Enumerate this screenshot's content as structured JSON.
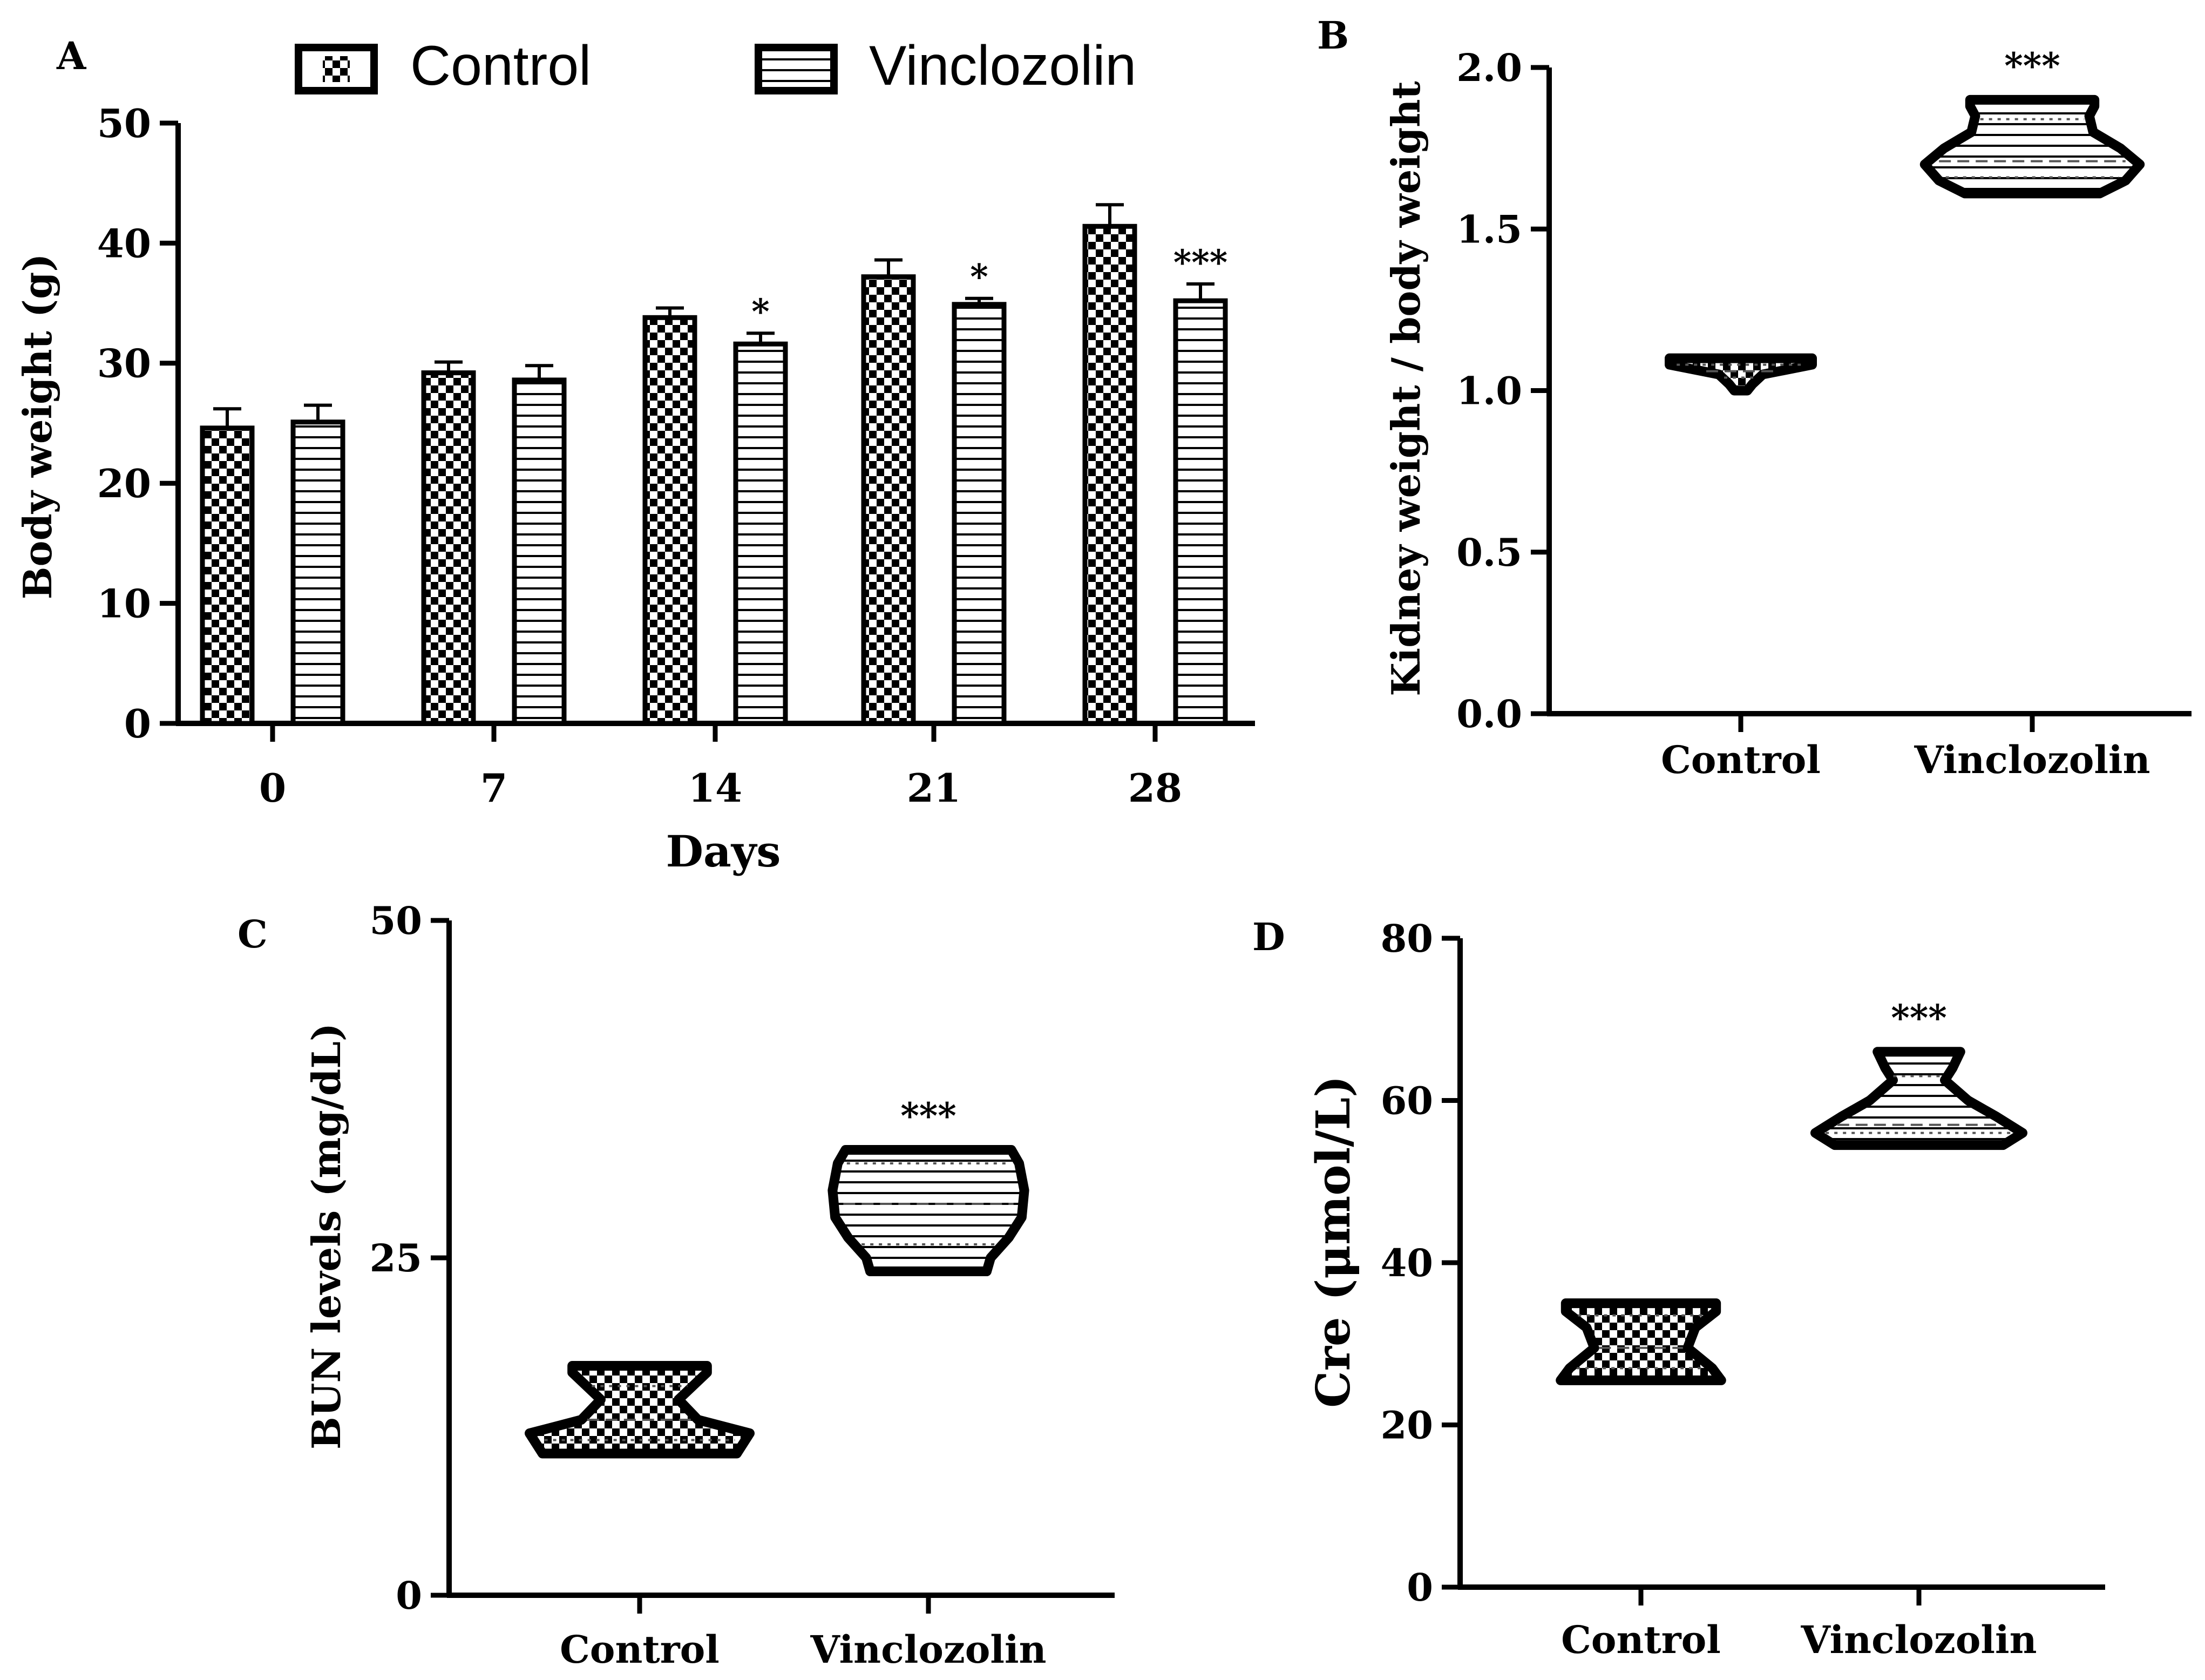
{
  "colors": {
    "ink": "#000000",
    "paper": "#ffffff"
  },
  "chart_data": [
    {
      "panel": "A",
      "type": "bar",
      "xlabel": "Days",
      "ylabel": "Body weight (g)",
      "ylim": [
        0,
        50
      ],
      "yticks": [
        "0",
        "10",
        "20",
        "30",
        "40",
        "50"
      ],
      "categories": [
        "0",
        "7",
        "14",
        "21",
        "28"
      ],
      "legend_position": "top",
      "series": [
        {
          "name": "Control",
          "pattern": "checker",
          "values": [
            24.6,
            29.2,
            33.8,
            37.2,
            41.4
          ],
          "errors": [
            1.6,
            0.9,
            0.8,
            1.4,
            1.8
          ],
          "significance": [
            "",
            "",
            "",
            "",
            ""
          ]
        },
        {
          "name": "Vinclozolin",
          "pattern": "stripes",
          "values": [
            25.1,
            28.6,
            31.6,
            34.9,
            35.2
          ],
          "errors": [
            1.4,
            1.2,
            0.9,
            0.5,
            1.4
          ],
          "significance": [
            "",
            "",
            "*",
            "*",
            "***"
          ]
        }
      ]
    },
    {
      "panel": "B",
      "type": "violin",
      "ylabel": "Kidney weight / body weight",
      "ylim": [
        0,
        2
      ],
      "yticks": [
        "0.0",
        "0.5",
        "1.0",
        "1.5",
        "2.0"
      ],
      "categories": [
        "Control",
        "Vinclozolin"
      ],
      "groups": [
        {
          "name": "Control",
          "pattern": "checker",
          "min": 1.0,
          "max": 1.1,
          "median": 1.06,
          "q1": 1.04,
          "q3": 1.08,
          "significance": "",
          "profile": [
            [
              1.0,
              0.05
            ],
            [
              1.02,
              0.09
            ],
            [
              1.05,
              0.17
            ],
            [
              1.08,
              0.55
            ],
            [
              1.1,
              0.55
            ]
          ]
        },
        {
          "name": "Vinclozolin",
          "pattern": "stripes",
          "min": 1.61,
          "max": 1.9,
          "median": 1.71,
          "q1": 1.66,
          "q3": 1.84,
          "significance": "***",
          "profile": [
            [
              1.61,
              0.52
            ],
            [
              1.65,
              0.72
            ],
            [
              1.7,
              0.83
            ],
            [
              1.75,
              0.68
            ],
            [
              1.8,
              0.47
            ],
            [
              1.85,
              0.44
            ],
            [
              1.88,
              0.48
            ],
            [
              1.9,
              0.48
            ]
          ]
        }
      ]
    },
    {
      "panel": "C",
      "type": "violin",
      "ylabel": "BUN levels (mg/dL)",
      "ylim": [
        0,
        50
      ],
      "yticks": [
        "0",
        "25",
        "50"
      ],
      "categories": [
        "Control",
        "Vinclozolin"
      ],
      "groups": [
        {
          "name": "Control",
          "pattern": "checker",
          "min": 10.5,
          "max": 17.0,
          "median": 13.0,
          "q1": 11.5,
          "q3": 15.5,
          "significance": "",
          "profile": [
            [
              10.5,
              0.75
            ],
            [
              12.0,
              0.85
            ],
            [
              13.0,
              0.45
            ],
            [
              14.5,
              0.3
            ],
            [
              16.5,
              0.52
            ],
            [
              17.0,
              0.52
            ]
          ]
        },
        {
          "name": "Vinclozolin",
          "pattern": "stripes",
          "min": 24.0,
          "max": 33.0,
          "median": 29.0,
          "q1": 26.0,
          "q3": 32.0,
          "significance": "***",
          "profile": [
            [
              24.0,
              0.45
            ],
            [
              25.0,
              0.48
            ],
            [
              26.5,
              0.62
            ],
            [
              28.0,
              0.72
            ],
            [
              30.0,
              0.74
            ],
            [
              32.0,
              0.7
            ],
            [
              33.0,
              0.64
            ]
          ]
        }
      ]
    },
    {
      "panel": "D",
      "type": "violin",
      "ylabel": "Cre (μmol/L)",
      "ylim": [
        0,
        80
      ],
      "yticks": [
        "0",
        "20",
        "40",
        "60",
        "80"
      ],
      "categories": [
        "Control",
        "Vinclozolin"
      ],
      "groups": [
        {
          "name": "Control",
          "pattern": "checker",
          "min": 25.5,
          "max": 35.0,
          "median": 29.5,
          "q1": 27.0,
          "q3": 33.5,
          "significance": "",
          "profile": [
            [
              25.5,
              0.62
            ],
            [
              27.0,
              0.55
            ],
            [
              29.5,
              0.36
            ],
            [
              32.0,
              0.42
            ],
            [
              34.0,
              0.58
            ],
            [
              35.0,
              0.58
            ]
          ]
        },
        {
          "name": "Vinclozolin",
          "pattern": "stripes",
          "min": 54.5,
          "max": 66.0,
          "median": 57.0,
          "q1": 56.0,
          "q3": 63.0,
          "significance": "***",
          "profile": [
            [
              54.5,
              0.65
            ],
            [
              56.0,
              0.8
            ],
            [
              58.0,
              0.6
            ],
            [
              60.0,
              0.38
            ],
            [
              62.5,
              0.2
            ],
            [
              64.0,
              0.26
            ],
            [
              66.0,
              0.32
            ]
          ]
        }
      ]
    }
  ]
}
